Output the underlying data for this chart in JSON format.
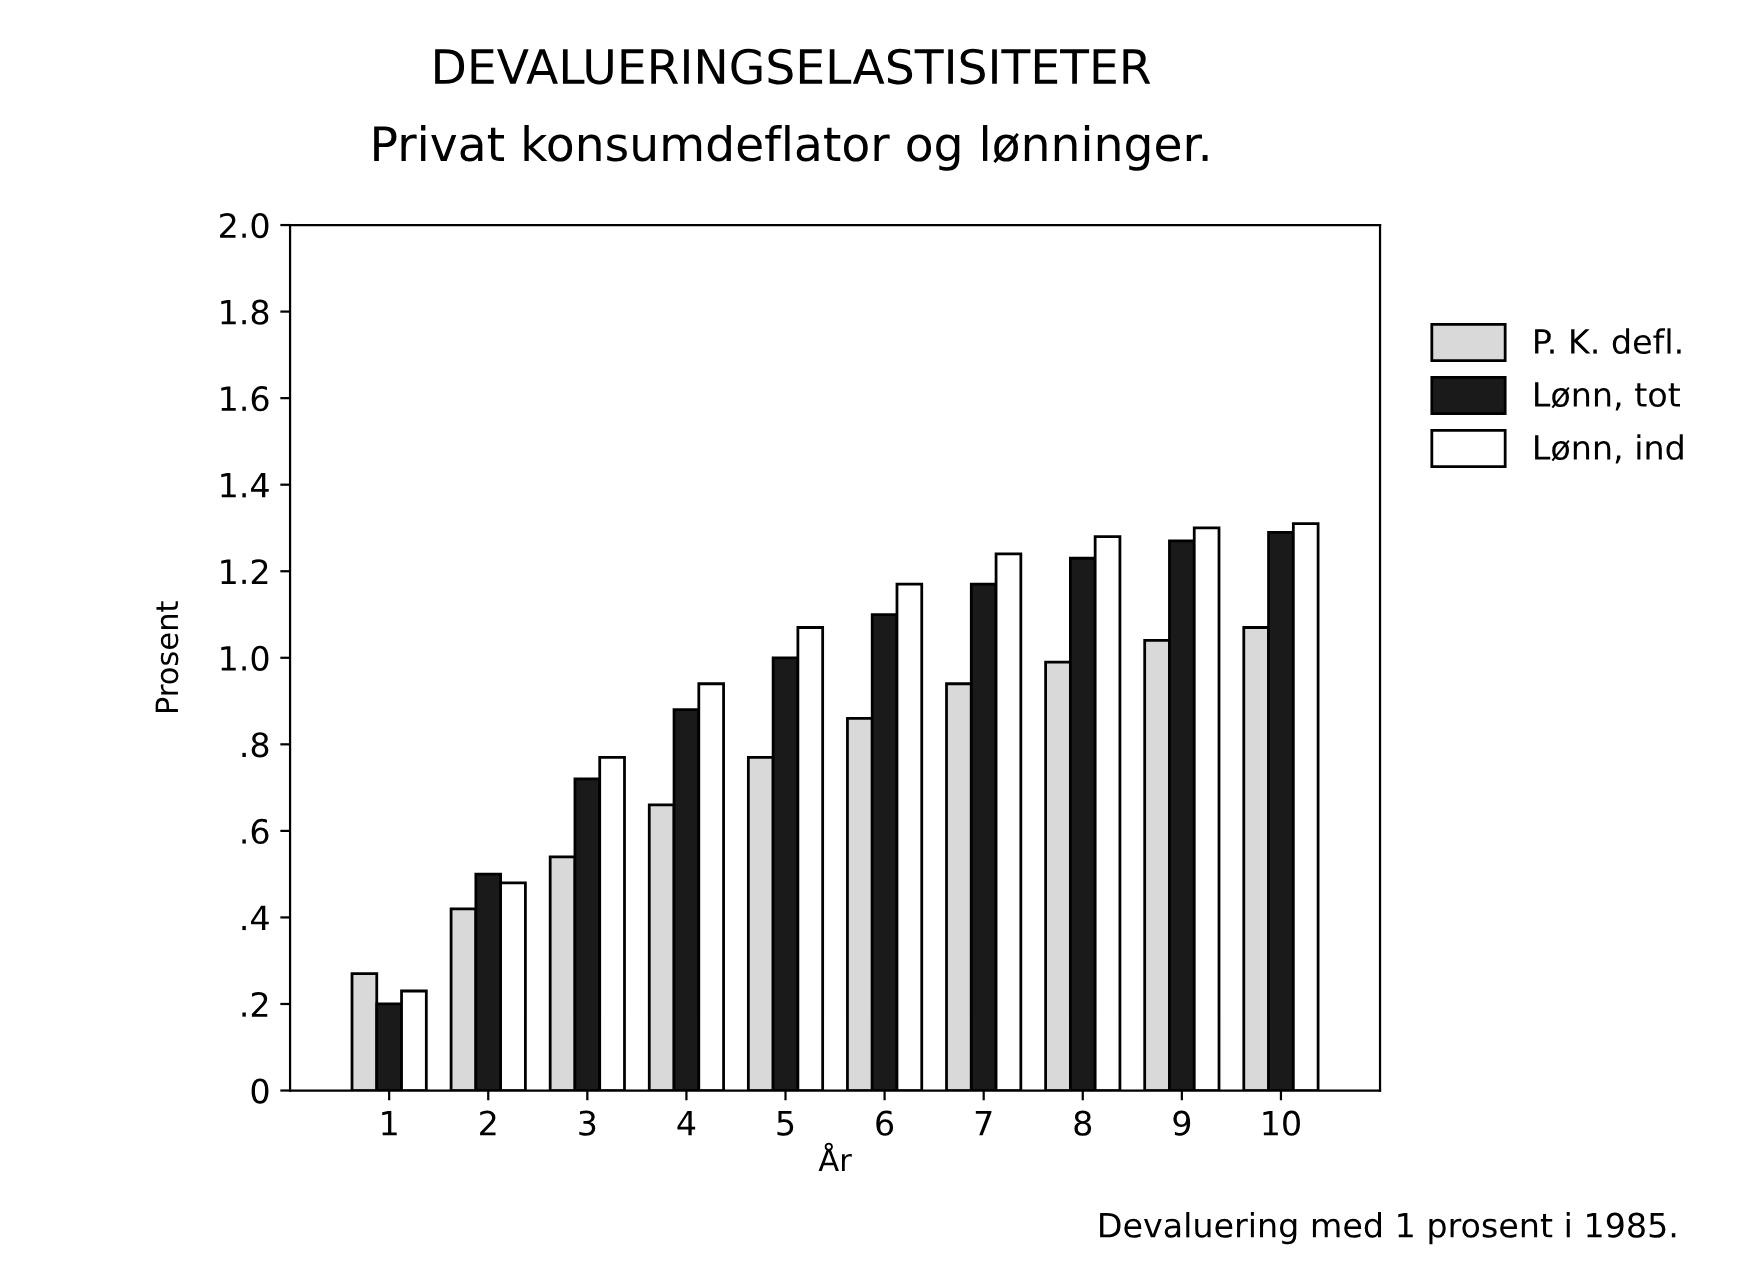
{
  "chart_data": {
    "type": "bar",
    "title": "DEVALUERINGSELASTISITETER",
    "subtitle": "Privat konsumdeflator og lønninger.",
    "xlabel": "År",
    "ylabel": "Prosent",
    "categories": [
      "1",
      "2",
      "3",
      "4",
      "5",
      "6",
      "7",
      "8",
      "9",
      "10"
    ],
    "series": [
      {
        "name": "P. K. defl.",
        "color": "#d9d9d9",
        "values": [
          0.27,
          0.42,
          0.54,
          0.66,
          0.77,
          0.86,
          0.94,
          0.99,
          1.04,
          1.07
        ]
      },
      {
        "name": "Lønn, tot",
        "color": "#1a1a1a",
        "values": [
          0.2,
          0.5,
          0.72,
          0.88,
          1.0,
          1.1,
          1.17,
          1.23,
          1.27,
          1.29
        ]
      },
      {
        "name": "Lønn, ind",
        "color": "#ffffff",
        "values": [
          0.23,
          0.48,
          0.77,
          0.94,
          1.07,
          1.17,
          1.24,
          1.28,
          1.3,
          1.31
        ]
      }
    ],
    "ylim": [
      0,
      2.0
    ],
    "yticks": [
      0,
      {
        "value": 0.2,
        "label": ".2"
      },
      {
        "value": 0.4,
        "label": ".4"
      },
      {
        "value": 0.6,
        "label": ".6"
      },
      {
        "value": 0.8,
        "label": ".8"
      },
      {
        "value": 1.0,
        "label": "1.0"
      },
      {
        "value": 1.2,
        "label": "1.2"
      },
      {
        "value": 1.4,
        "label": "1.4"
      },
      {
        "value": 1.6,
        "label": "1.6"
      },
      {
        "value": 1.8,
        "label": "1.8"
      },
      {
        "value": 2.0,
        "label": "2.0"
      }
    ],
    "grid": false,
    "legend": "right",
    "annotations": [
      "Devaluering med 1 prosent i 1985."
    ]
  }
}
